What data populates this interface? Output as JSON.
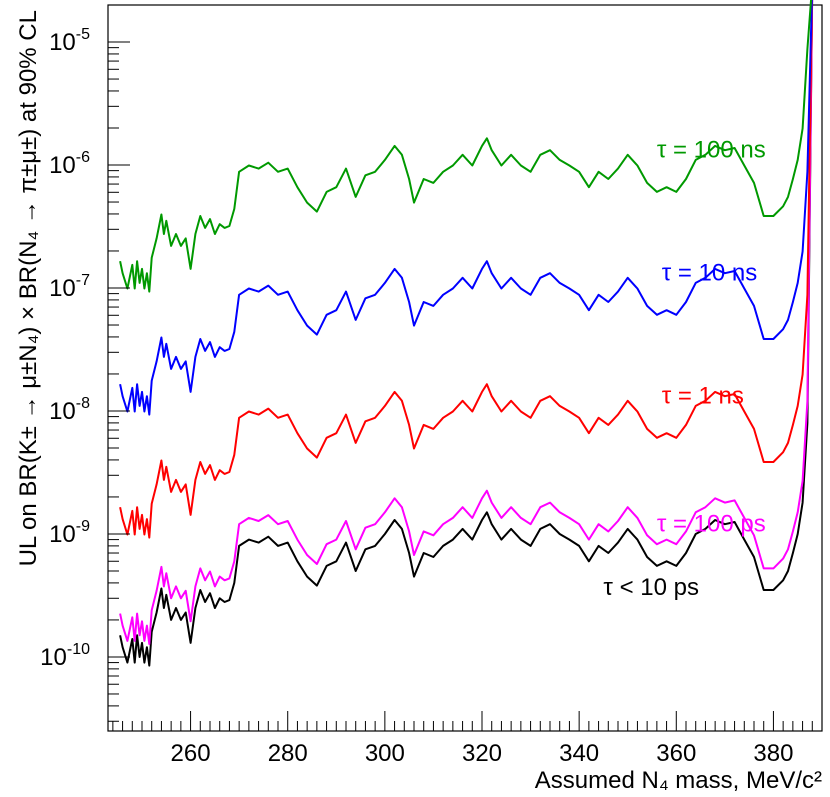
{
  "chart_data": {
    "type": "line",
    "xlabel": "Assumed N₄ mass, MeV/c²",
    "ylabel": "UL on BR(K± → μ±N₄) × BR(N₄ → π±μ±) at 90% CL",
    "xlim": [
      243,
      390
    ],
    "ylim": [
      2.5e-11,
      2e-05
    ],
    "ylog": true,
    "grid": false,
    "x_ticks": [
      "260",
      "280",
      "300",
      "320",
      "340",
      "360",
      "380"
    ],
    "x_tick_values": [
      260,
      280,
      300,
      320,
      340,
      360,
      380
    ],
    "y_ticks": [
      {
        "value": 1e-10,
        "mantissa": "10",
        "exp": "-10"
      },
      {
        "value": 1e-09,
        "mantissa": "10",
        "exp": "-9"
      },
      {
        "value": 1e-08,
        "mantissa": "10",
        "exp": "-8"
      },
      {
        "value": 1e-07,
        "mantissa": "10",
        "exp": "-7"
      },
      {
        "value": 1e-06,
        "mantissa": "10",
        "exp": "-6"
      },
      {
        "value": 1e-05,
        "mantissa": "10",
        "exp": "-5"
      }
    ],
    "legend_placement": "inline-right",
    "base_profile": {
      "description_units": "upper limit for tau < 10 ps",
      "x": [
        245.5,
        246,
        247,
        248,
        248.5,
        249,
        249.5,
        250,
        250.5,
        251,
        251.5,
        252,
        253,
        254,
        254.5,
        255,
        256,
        257,
        258,
        259,
        260,
        261,
        262,
        263,
        264,
        265,
        266,
        267,
        268,
        269,
        270,
        272,
        274,
        276,
        278,
        280,
        282,
        284,
        286,
        288,
        290,
        292,
        294,
        296,
        298,
        300,
        302,
        303.5,
        305,
        306,
        308,
        310,
        312,
        314,
        316,
        318,
        320,
        321,
        322,
        324,
        326,
        328,
        330,
        332,
        334,
        336,
        338,
        340,
        342,
        344,
        346,
        348,
        350,
        352,
        354,
        356,
        358,
        360,
        362,
        364,
        366,
        368,
        370,
        372,
        374,
        376,
        378,
        380,
        382,
        383,
        384,
        385,
        386,
        387,
        388
      ],
      "values": [
        1.5e-10,
        1.2e-10,
        9e-11,
        1.4e-10,
        9e-11,
        1.5e-10,
        1e-10,
        1.3e-10,
        9e-11,
        1.2e-10,
        8.5e-11,
        1.6e-10,
        2.3e-10,
        3.6e-10,
        2.5e-10,
        3.2e-10,
        2e-10,
        2.5e-10,
        2e-10,
        2.3e-10,
        1.3e-10,
        2.5e-10,
        3.5e-10,
        2.8e-10,
        3.3e-10,
        2.5e-10,
        3e-10,
        2.8e-10,
        2.9e-10,
        4e-10,
        8e-10,
        9e-10,
        8.5e-10,
        9.5e-10,
        8e-10,
        8.5e-10,
        6e-10,
        4.5e-10,
        3.8e-10,
        5.5e-10,
        6e-10,
        8.5e-10,
        5e-10,
        7.5e-10,
        8e-10,
        1e-09,
        1.3e-09,
        1.1e-09,
        7e-10,
        4.5e-10,
        7e-10,
        6.5e-10,
        8e-10,
        9e-10,
        1.1e-09,
        9e-10,
        1.3e-09,
        1.5e-09,
        1.2e-09,
        9e-10,
        1.1e-09,
        9e-10,
        8e-10,
        1.1e-09,
        1.2e-09,
        1e-09,
        9e-10,
        8e-10,
        6e-10,
        8e-10,
        7e-10,
        8.5e-10,
        1.1e-09,
        9e-10,
        6.5e-10,
        5.5e-10,
        6e-10,
        5.5e-10,
        7e-10,
        1e-09,
        1.1e-09,
        1.3e-09,
        1.2e-09,
        1.25e-09,
        9e-10,
        6.5e-10,
        3.5e-10,
        3.5e-10,
        4.2e-10,
        5e-10,
        7e-10,
        1e-09,
        1.8e-09,
        8e-09,
        3e-05
      ]
    },
    "series": [
      {
        "name": "τ < 10 ps",
        "color": "#000000",
        "scale": 1.0,
        "label_x": 345,
        "label_value": 3.2e-10
      },
      {
        "name": "τ = 100 ps",
        "color": "#ff00ff",
        "scale": 1.5,
        "label_x": 356,
        "label_value": 1.05e-09
      },
      {
        "name": "τ = 1 ns",
        "color": "#ff0000",
        "scale": 11,
        "label_x": 357,
        "label_value": 1.15e-08
      },
      {
        "name": "τ = 10 ns",
        "color": "#0000ff",
        "scale": 110,
        "label_x": 357,
        "label_value": 1.15e-07
      },
      {
        "name": "τ = 100 ns",
        "color": "#009900",
        "scale": 1100,
        "label_x": 356,
        "label_value": 1.15e-06
      }
    ]
  }
}
